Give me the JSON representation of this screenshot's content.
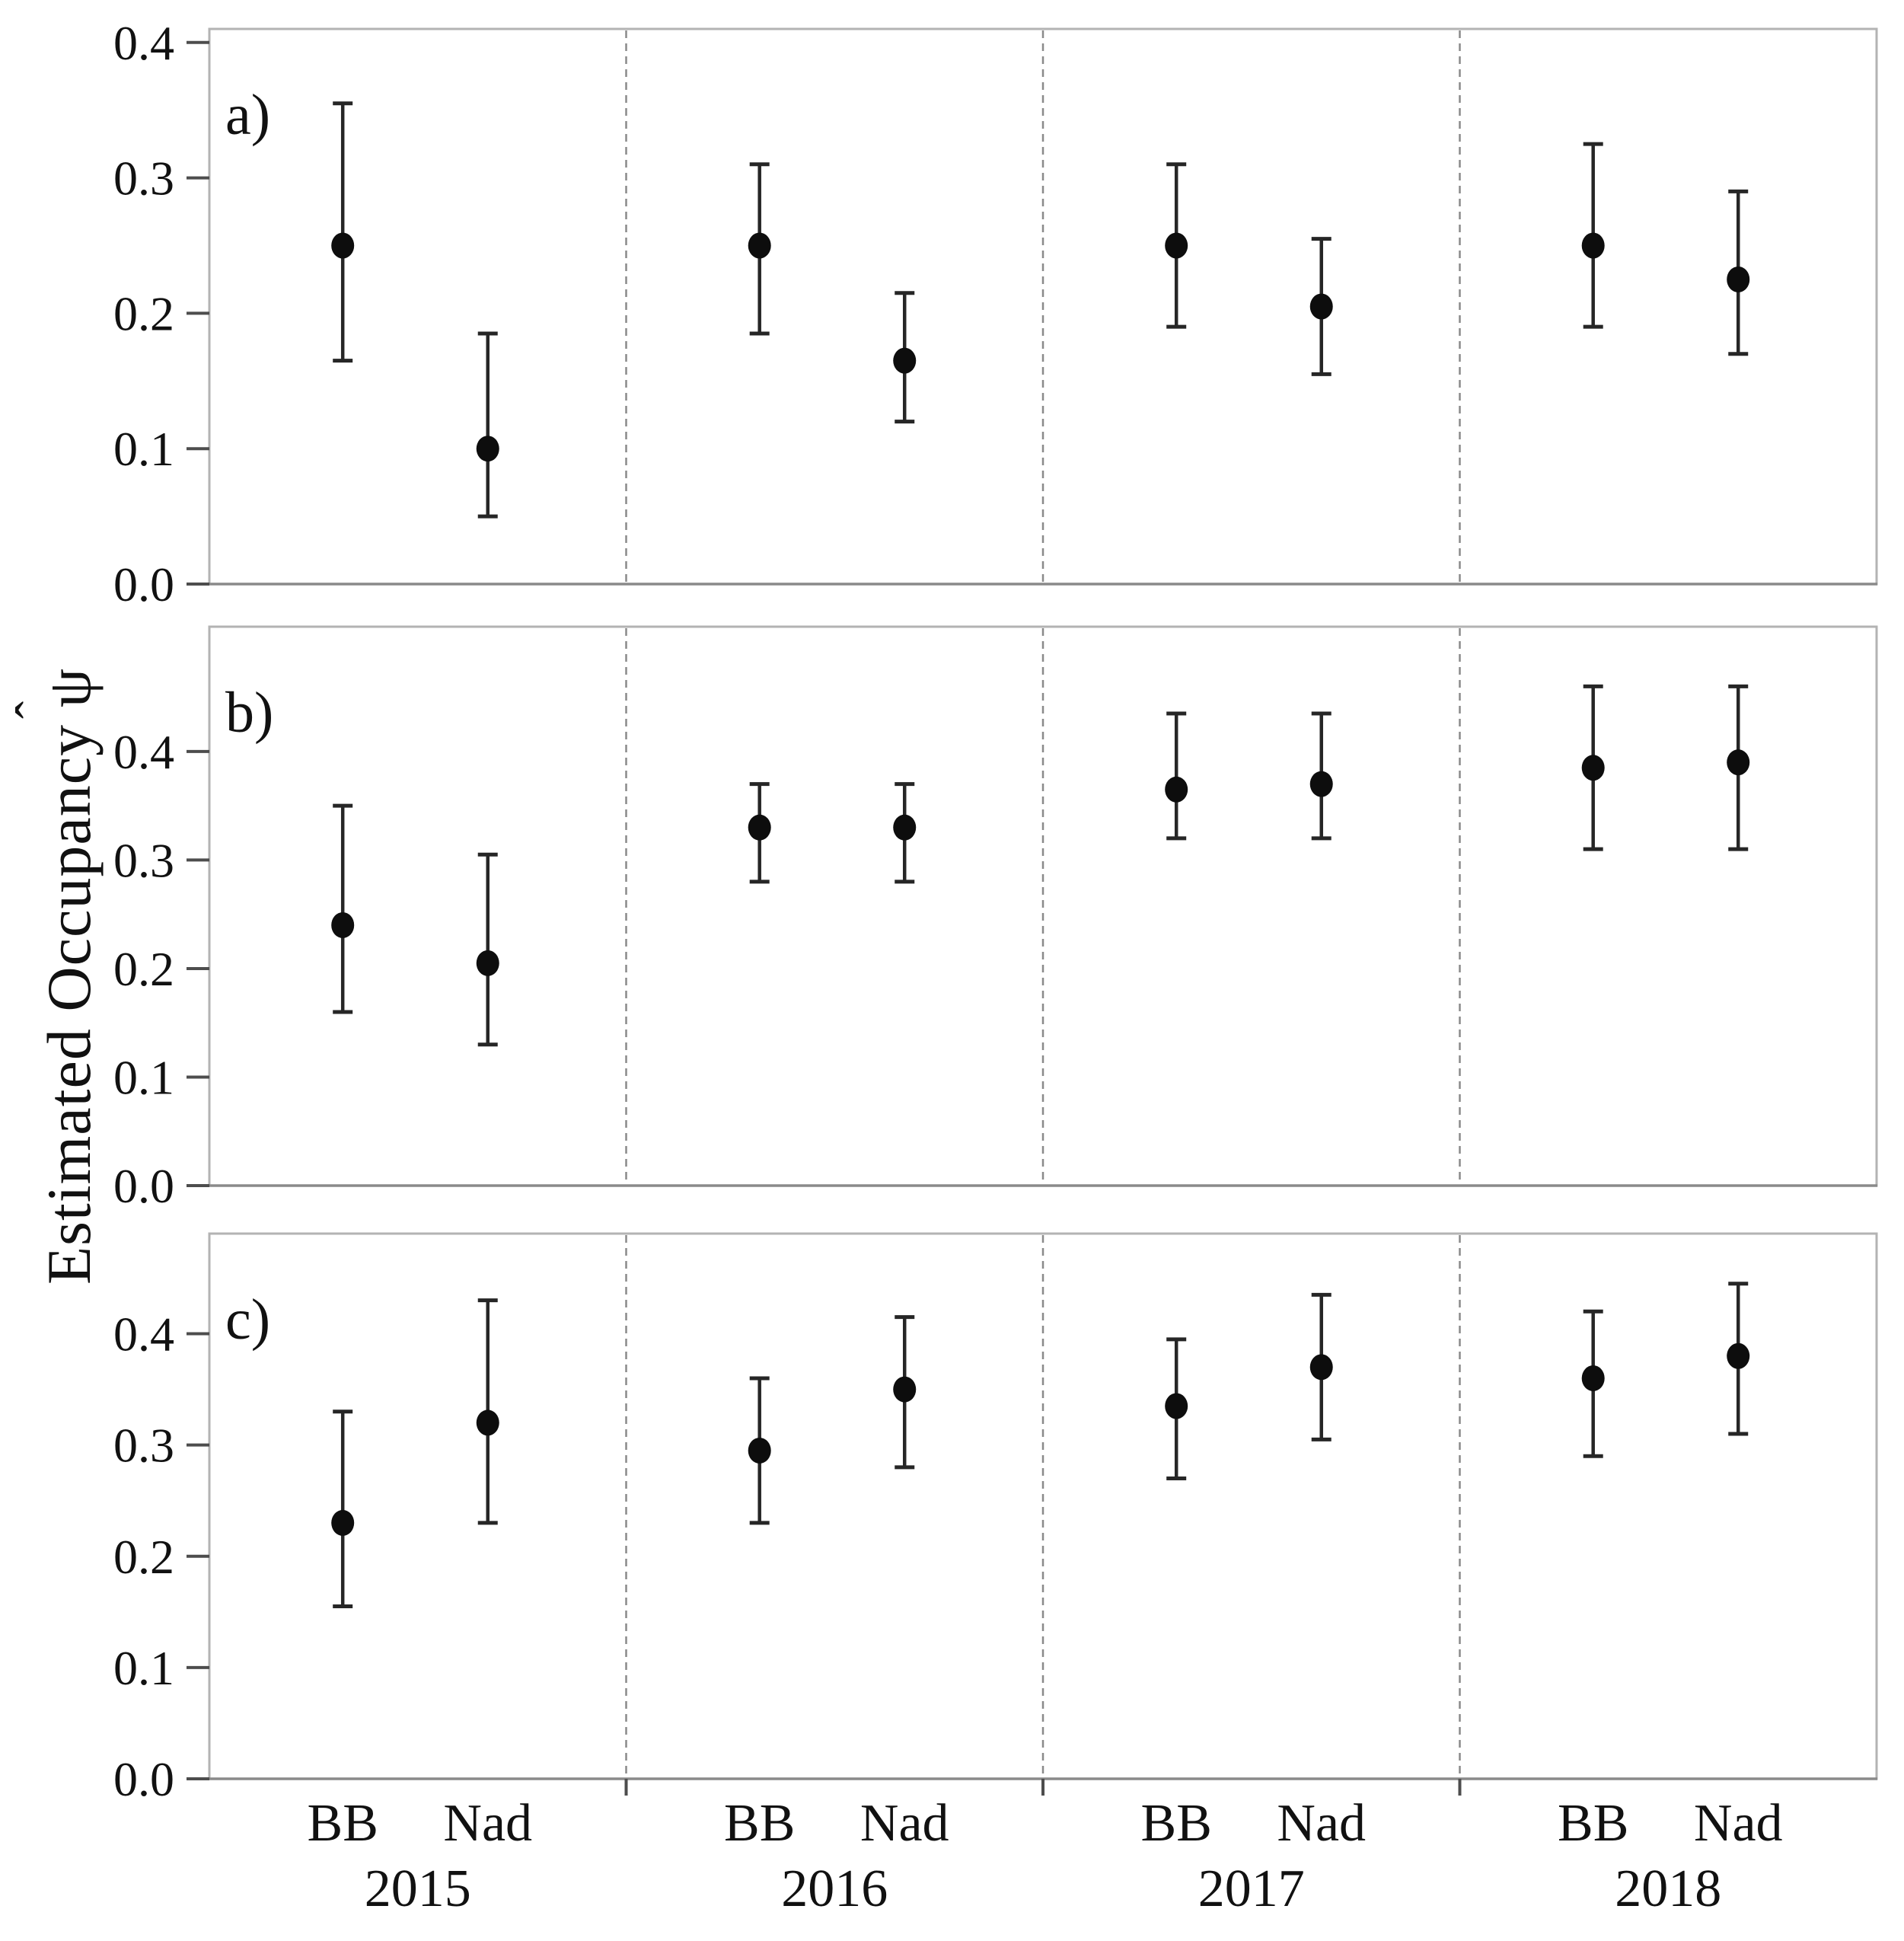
{
  "chart_data": {
    "type": "scatter",
    "title": "",
    "xlabel": "",
    "ylabel": "Estimated Occupancy ψ̂",
    "ylabel_parts": {
      "text": "Estimated Occupancy",
      "symbol": "ψ",
      "hat": "ˆ"
    },
    "grid": false,
    "legend": false,
    "x_groups": [
      "2015",
      "2016",
      "2017",
      "2018"
    ],
    "x_sites": [
      "BB",
      "Nad"
    ],
    "colors": {
      "point": "#0d0d0d",
      "error": "#262626",
      "frame": "#b3b3b3",
      "axis": "#8a8a8a",
      "dashed": "#8a8a8a",
      "tick": "#4d4d4d",
      "text": "#111111"
    },
    "panels": [
      {
        "label": "a)",
        "ylim": [
          0,
          0.41
        ],
        "yticks": [
          "0.0",
          "0.1",
          "0.2",
          "0.3",
          "0.4"
        ],
        "points": [
          {
            "year": "2015",
            "site": "BB",
            "est": 0.25,
            "lo": 0.165,
            "hi": 0.355
          },
          {
            "year": "2015",
            "site": "Nad",
            "est": 0.1,
            "lo": 0.05,
            "hi": 0.185
          },
          {
            "year": "2016",
            "site": "BB",
            "est": 0.25,
            "lo": 0.185,
            "hi": 0.31
          },
          {
            "year": "2016",
            "site": "Nad",
            "est": 0.165,
            "lo": 0.12,
            "hi": 0.215
          },
          {
            "year": "2017",
            "site": "BB",
            "est": 0.25,
            "lo": 0.19,
            "hi": 0.31
          },
          {
            "year": "2017",
            "site": "Nad",
            "est": 0.205,
            "lo": 0.155,
            "hi": 0.255
          },
          {
            "year": "2018",
            "site": "BB",
            "est": 0.25,
            "lo": 0.19,
            "hi": 0.325
          },
          {
            "year": "2018",
            "site": "Nad",
            "est": 0.225,
            "lo": 0.17,
            "hi": 0.29
          }
        ]
      },
      {
        "label": "b)",
        "ylim": [
          0,
          0.515
        ],
        "yticks": [
          "0.0",
          "0.1",
          "0.2",
          "0.3",
          "0.4"
        ],
        "points": [
          {
            "year": "2015",
            "site": "BB",
            "est": 0.24,
            "lo": 0.16,
            "hi": 0.35
          },
          {
            "year": "2015",
            "site": "Nad",
            "est": 0.205,
            "lo": 0.13,
            "hi": 0.305
          },
          {
            "year": "2016",
            "site": "BB",
            "est": 0.33,
            "lo": 0.28,
            "hi": 0.37
          },
          {
            "year": "2016",
            "site": "Nad",
            "est": 0.33,
            "lo": 0.28,
            "hi": 0.37
          },
          {
            "year": "2017",
            "site": "BB",
            "est": 0.365,
            "lo": 0.32,
            "hi": 0.435
          },
          {
            "year": "2017",
            "site": "Nad",
            "est": 0.37,
            "lo": 0.32,
            "hi": 0.435
          },
          {
            "year": "2018",
            "site": "BB",
            "est": 0.385,
            "lo": 0.31,
            "hi": 0.46
          },
          {
            "year": "2018",
            "site": "Nad",
            "est": 0.39,
            "lo": 0.31,
            "hi": 0.46
          }
        ]
      },
      {
        "label": "c)",
        "ylim": [
          0,
          0.49
        ],
        "yticks": [
          "0.0",
          "0.1",
          "0.2",
          "0.3",
          "0.4"
        ],
        "points": [
          {
            "year": "2015",
            "site": "BB",
            "est": 0.23,
            "lo": 0.155,
            "hi": 0.33
          },
          {
            "year": "2015",
            "site": "Nad",
            "est": 0.32,
            "lo": 0.23,
            "hi": 0.43
          },
          {
            "year": "2016",
            "site": "BB",
            "est": 0.295,
            "lo": 0.23,
            "hi": 0.36
          },
          {
            "year": "2016",
            "site": "Nad",
            "est": 0.35,
            "lo": 0.28,
            "hi": 0.415
          },
          {
            "year": "2017",
            "site": "BB",
            "est": 0.335,
            "lo": 0.27,
            "hi": 0.395
          },
          {
            "year": "2017",
            "site": "Nad",
            "est": 0.37,
            "lo": 0.305,
            "hi": 0.435
          },
          {
            "year": "2018",
            "site": "BB",
            "est": 0.36,
            "lo": 0.29,
            "hi": 0.42
          },
          {
            "year": "2018",
            "site": "Nad",
            "est": 0.38,
            "lo": 0.31,
            "hi": 0.445
          }
        ]
      }
    ]
  }
}
